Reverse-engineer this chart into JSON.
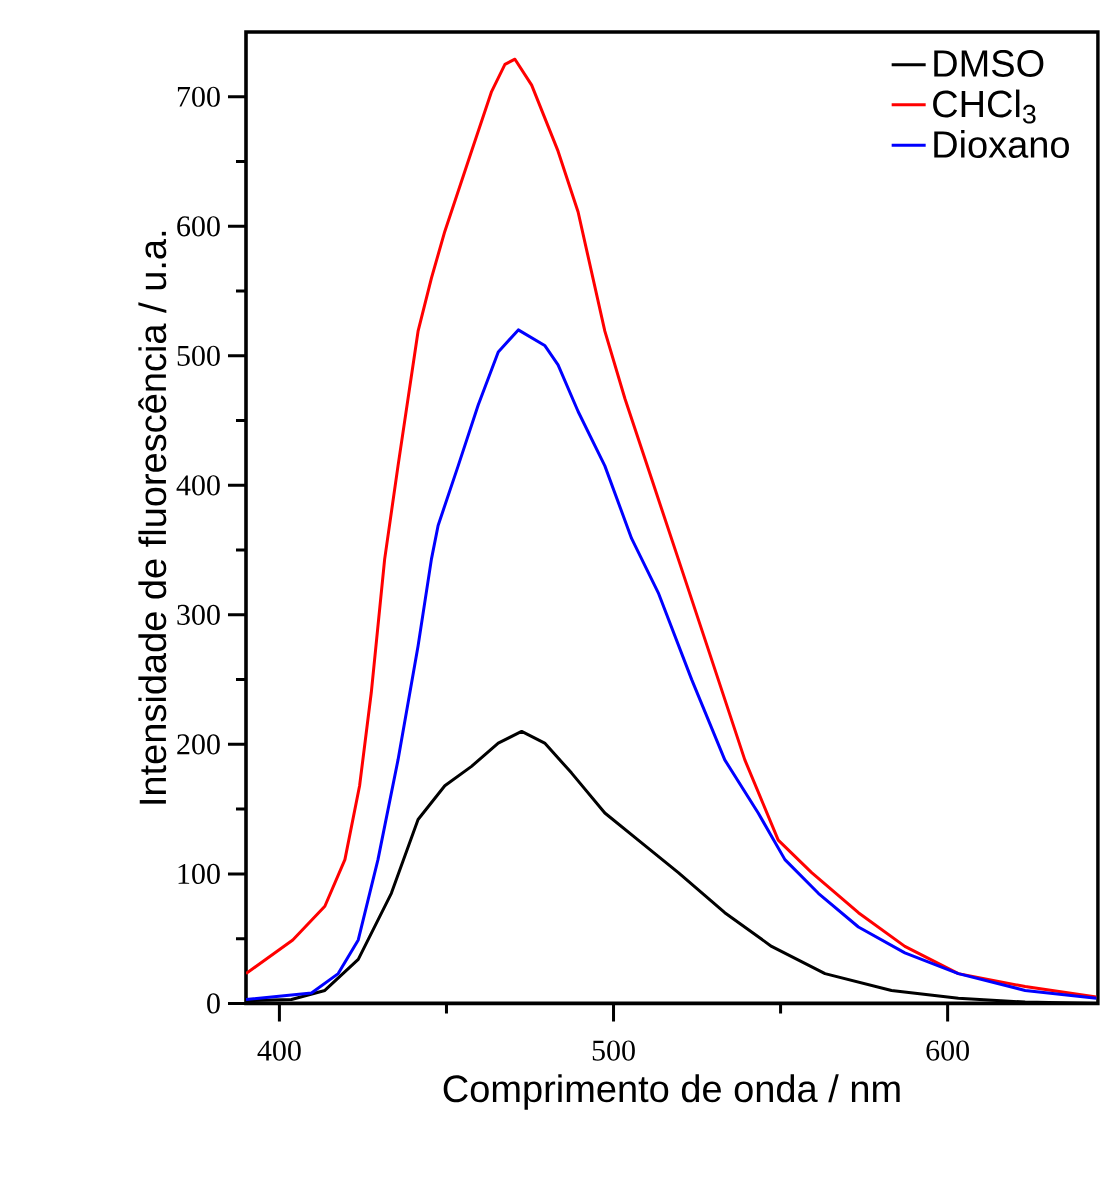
{
  "chart_data": {
    "type": "line",
    "xlabel": "Comprimento de onda / nm",
    "ylabel": "Intensidade de fluorescência / u.a.",
    "xlim": [
      390,
      645
    ],
    "ylim": [
      0,
      750
    ],
    "xticks": [
      400,
      500,
      600
    ],
    "yticks": [
      0,
      100,
      200,
      300,
      400,
      500,
      600,
      700
    ],
    "legend": "top right",
    "grid": false,
    "marker": "none",
    "line_style": "solid",
    "series": [
      {
        "name": "DMSO",
        "color": "#000000",
        "x": [
          390,
          403.6,
          413.6,
          423.6,
          433.5,
          441.5,
          449.5,
          457.5,
          465.5,
          472.5,
          479.4,
          487.4,
          497.4,
          507.4,
          519.4,
          533.3,
          547.3,
          563.3,
          583.2,
          603.2,
          623.2,
          644.5
        ],
        "values": [
          2,
          3,
          10,
          34,
          85,
          142,
          168,
          183,
          201,
          210,
          201,
          178,
          147,
          126,
          101,
          70,
          44,
          23,
          10,
          4,
          1,
          0
        ]
      },
      {
        "name": "CHCl$_{3}$",
        "color": "#ff0000",
        "x": [
          390,
          404,
          413.6,
          419.6,
          424,
          427.5,
          431.5,
          435.5,
          441.5,
          445.5,
          449.5,
          457.5,
          463.5,
          467.5,
          470.5,
          475.5,
          483.4,
          489.4,
          497.4,
          503.4,
          511.4,
          519.4,
          529.3,
          539.3,
          549.3,
          559.3,
          573.3,
          587.2,
          603.2,
          623.2,
          644.5
        ],
        "values": [
          23,
          49,
          75,
          111,
          168,
          240,
          343,
          415,
          519,
          560,
          596,
          658,
          704,
          725,
          729,
          709,
          658,
          611,
          519,
          467,
          405,
          343,
          266,
          188,
          126,
          101,
          70,
          44,
          23,
          13,
          5
        ]
      },
      {
        "name": "Dioxano",
        "color": "#0000ff",
        "x": [
          390,
          409.6,
          417.6,
          423.6,
          429.5,
          435.5,
          441.5,
          445.5,
          447.5,
          453.5,
          459.5,
          465.5,
          471.5,
          479.4,
          483.4,
          489.4,
          497.4,
          505.4,
          513.4,
          523.4,
          533.3,
          543.3,
          551.3,
          561.3,
          573.3,
          587.2,
          603.2,
          623.2,
          644.5
        ],
        "values": [
          3,
          8,
          23,
          49,
          111,
          188,
          276,
          343,
          369,
          415,
          462,
          503,
          520,
          508,
          493,
          457,
          415,
          359,
          317,
          250,
          188,
          147,
          111,
          85,
          59,
          39,
          23,
          10,
          4
        ]
      }
    ]
  }
}
